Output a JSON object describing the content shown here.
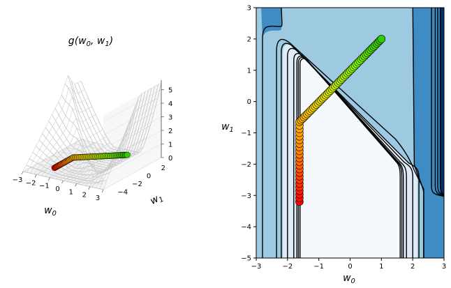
{
  "chart_data": [
    {
      "type": "surface3d",
      "title": "g(w0, w1)",
      "title_main": "g",
      "title_args": "(w",
      "title_sub0": "0",
      "title_mid": ", w",
      "title_sub1": "1",
      "title_end": ")",
      "xlabel_main": "w",
      "xlabel_sub": "0",
      "ylabel_main": "w",
      "ylabel_sub": "1",
      "xticks": [
        "−3",
        "−2",
        "−1",
        "0",
        "1",
        "2",
        "3"
      ],
      "yticks": [
        "−4",
        "−2",
        "0",
        "2"
      ],
      "zticks": [
        "0",
        "1",
        "2",
        "3",
        "4",
        "5"
      ],
      "xlim": [
        -3,
        3
      ],
      "ylim": [
        -5,
        3
      ],
      "zlim": [
        0,
        5.5
      ],
      "path_color_start": "#ff0000",
      "path_color_end": "#2ecc00"
    },
    {
      "type": "contour",
      "xlabel_main": "w",
      "xlabel_sub": "0",
      "ylabel_main": "w",
      "ylabel_sub": "1",
      "xticks": [
        "−3",
        "−2",
        "−1",
        "0",
        "1",
        "2",
        "3"
      ],
      "yticks": [
        "−5",
        "−4",
        "−3",
        "−2",
        "−1",
        "0",
        "1",
        "2",
        "3"
      ],
      "xtick_values": [
        -3,
        -2,
        -1,
        0,
        1,
        2,
        3
      ],
      "ytick_values": [
        -5,
        -4,
        -3,
        -2,
        -1,
        0,
        1,
        2,
        3
      ],
      "xlim": [
        -3,
        3
      ],
      "ylim": [
        -5,
        3
      ],
      "fill_colors": [
        "#f5f9fe",
        "#dfebf7",
        "#9ecae1",
        "#3f8bc4",
        "#08306b"
      ],
      "path": {
        "start": [
          1.0,
          2.0
        ],
        "corner": [
          -1.62,
          -0.65
        ],
        "end": [
          -1.62,
          -3.2
        ],
        "diag_points": 54,
        "vert_points": 22
      }
    }
  ]
}
